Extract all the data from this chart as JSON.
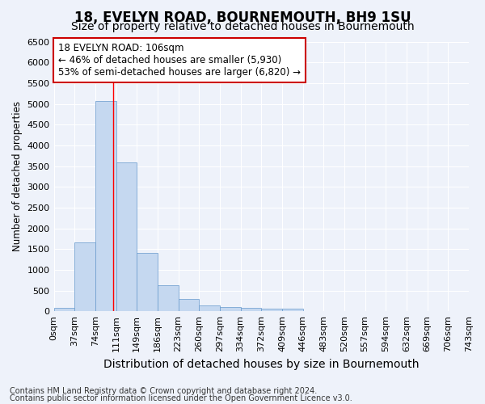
{
  "title": "18, EVELYN ROAD, BOURNEMOUTH, BH9 1SU",
  "subtitle": "Size of property relative to detached houses in Bournemouth",
  "xlabel": "Distribution of detached houses by size in Bournemouth",
  "ylabel": "Number of detached properties",
  "footnote1": "Contains HM Land Registry data © Crown copyright and database right 2024.",
  "footnote2": "Contains public sector information licensed under the Open Government Licence v3.0.",
  "annotation_line1": "18 EVELYN ROAD: 106sqm",
  "annotation_line2": "← 46% of detached houses are smaller (5,930)",
  "annotation_line3": "53% of semi-detached houses are larger (6,820) →",
  "bar_values": [
    75,
    1650,
    5060,
    3580,
    1400,
    620,
    290,
    140,
    100,
    75,
    55,
    55,
    0,
    0,
    0,
    0,
    0,
    0,
    0,
    0
  ],
  "x_tick_labels": [
    "0sqm",
    "37sqm",
    "74sqm",
    "111sqm",
    "149sqm",
    "186sqm",
    "223sqm",
    "260sqm",
    "297sqm",
    "334sqm",
    "372sqm",
    "409sqm",
    "446sqm",
    "483sqm",
    "520sqm",
    "557sqm",
    "594sqm",
    "632sqm",
    "669sqm",
    "706sqm",
    "743sqm"
  ],
  "bar_color": "#c5d8f0",
  "bar_edge_color": "#6699cc",
  "redline_x": 2.87,
  "ylim": [
    0,
    6500
  ],
  "yticks": [
    0,
    500,
    1000,
    1500,
    2000,
    2500,
    3000,
    3500,
    4000,
    4500,
    5000,
    5500,
    6000,
    6500
  ],
  "title_fontsize": 12,
  "subtitle_fontsize": 10,
  "xlabel_fontsize": 10,
  "ylabel_fontsize": 8.5,
  "tick_fontsize": 8,
  "annotation_fontsize": 8.5,
  "footnote_fontsize": 7,
  "bg_color": "#eef2fa",
  "grid_color": "#ffffff",
  "annotation_box_color": "#ffffff",
  "annotation_box_edge": "#cc0000"
}
